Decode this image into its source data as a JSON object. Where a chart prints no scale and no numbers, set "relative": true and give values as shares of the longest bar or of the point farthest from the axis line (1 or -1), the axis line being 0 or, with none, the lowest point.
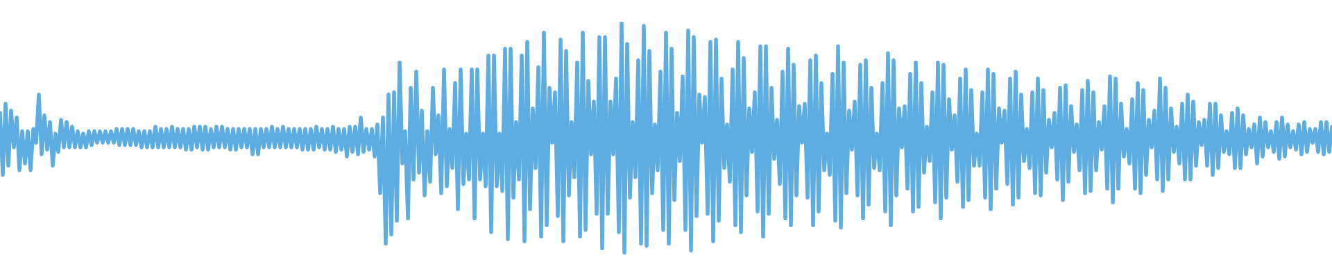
{
  "chart_data": {
    "type": "line",
    "relative": true,
    "color": "#5dade2",
    "tick_labels": false,
    "grid": false,
    "line_style": "solid",
    "categories": [
      null,
      null,
      null,
      null,
      null,
      null,
      null,
      null,
      null,
      null,
      null,
      null,
      null,
      null,
      null,
      null,
      null,
      null,
      null,
      null,
      null,
      null,
      null,
      null,
      null,
      null,
      null,
      null,
      null,
      null,
      null,
      null,
      null,
      null,
      null,
      null,
      null,
      null,
      null,
      null,
      null,
      null,
      null,
      null,
      null,
      null,
      null,
      null,
      null,
      null,
      null,
      null,
      null,
      null,
      null,
      null,
      null,
      null,
      null,
      null,
      null,
      null,
      null,
      null,
      null,
      null,
      null,
      null,
      null,
      null,
      null,
      null,
      null,
      null,
      null,
      null,
      null,
      null,
      null,
      null,
      null,
      null,
      null,
      null,
      null,
      null,
      null,
      null,
      null,
      null,
      null,
      null,
      null,
      null,
      null,
      null,
      null,
      null,
      null,
      null,
      null,
      null,
      null,
      null,
      null,
      null,
      null,
      null,
      null,
      null,
      null,
      null,
      null,
      null,
      null,
      null,
      null,
      null,
      null,
      null,
      null,
      null,
      null,
      null,
      null,
      null,
      null,
      null,
      null,
      null,
      null,
      null,
      null,
      null,
      null,
      null,
      null,
      null,
      null,
      null,
      null,
      null,
      null,
      null,
      null,
      null,
      null,
      null,
      null,
      null,
      null,
      null,
      null,
      null,
      null,
      null,
      null,
      null,
      null,
      null,
      null,
      null,
      null,
      null,
      null,
      null,
      null,
      null,
      null,
      null,
      null,
      null,
      null,
      null,
      null,
      null,
      null,
      null,
      null,
      null,
      null,
      null,
      null,
      null,
      null,
      null,
      null,
      null,
      null,
      null,
      null,
      null,
      null,
      null,
      null,
      null,
      null,
      null,
      null,
      null,
      null,
      null,
      null,
      null,
      null,
      null,
      null,
      null,
      null,
      null,
      null,
      null,
      null,
      null,
      null,
      null,
      null,
      null,
      null,
      null,
      null,
      null,
      null,
      null,
      null,
      null,
      null,
      null,
      null,
      null,
      null,
      null,
      null,
      null,
      null,
      null,
      null,
      null,
      null,
      null,
      null,
      null,
      null,
      null,
      null,
      null,
      null,
      null,
      null,
      null,
      null,
      null,
      null,
      null,
      null,
      null,
      null,
      null,
      null,
      null,
      null,
      null,
      null,
      null,
      null,
      null,
      null,
      null,
      null,
      null,
      null,
      null,
      null,
      null,
      null,
      null,
      null,
      null,
      null,
      null,
      null,
      null,
      null,
      null,
      null,
      null,
      null,
      null,
      null,
      null,
      null,
      null,
      null,
      null,
      null,
      null,
      null,
      null,
      null,
      null,
      null,
      null,
      null,
      null,
      null,
      null,
      null,
      null,
      null,
      null,
      null,
      null,
      null,
      null,
      null,
      null,
      null,
      null,
      null,
      null,
      null,
      null,
      null,
      null,
      null,
      null,
      null,
      null,
      null,
      null,
      null,
      null,
      null,
      null,
      null,
      null,
      null,
      null,
      null,
      null,
      null,
      null,
      null,
      null,
      null,
      null,
      null,
      null,
      null,
      null,
      null,
      null,
      null,
      null,
      null,
      null,
      null,
      null,
      null,
      null,
      null,
      null,
      null,
      null,
      null,
      null,
      null,
      null,
      null,
      null,
      null,
      null,
      null,
      null,
      null,
      null,
      null,
      null,
      null,
      null,
      null,
      null,
      null,
      null,
      null,
      null,
      null,
      null,
      null,
      null,
      null,
      null,
      null,
      null,
      null,
      null,
      null,
      null,
      null,
      null,
      null,
      null,
      null,
      null,
      null,
      null,
      null,
      null,
      null,
      null,
      null,
      null,
      null,
      null,
      null,
      null,
      null,
      null,
      null,
      null,
      null,
      null,
      null,
      null,
      null,
      null,
      null,
      null,
      null,
      null,
      null,
      null,
      null,
      null,
      null,
      null,
      null,
      null,
      null,
      null,
      null,
      null,
      null,
      null,
      null,
      null,
      null,
      null,
      null,
      null,
      null,
      null,
      null,
      null,
      null,
      null,
      null,
      null,
      null,
      null,
      null,
      null,
      null,
      null,
      null,
      null,
      null,
      null,
      null,
      null,
      null,
      null,
      null,
      null,
      null,
      null,
      null,
      null,
      null,
      null,
      null
    ],
    "values": [
      0.61,
      0.34,
      0.65,
      0.38,
      0.62,
      0.46,
      0.59,
      0.36,
      0.53,
      0.39,
      0.53,
      0.36,
      0.54,
      0.48,
      0.69,
      0.43,
      0.6,
      0.45,
      0.57,
      0.38,
      0.52,
      0.44,
      0.58,
      0.46,
      0.57,
      0.46,
      0.55,
      0.46,
      0.53,
      0.46,
      0.52,
      0.46,
      0.53,
      0.47,
      0.53,
      0.48,
      0.53,
      0.48,
      0.53,
      0.48,
      0.53,
      0.48,
      0.54,
      0.47,
      0.54,
      0.47,
      0.54,
      0.47,
      0.54,
      0.47,
      0.53,
      0.46,
      0.53,
      0.46,
      0.53,
      0.46,
      0.55,
      0.46,
      0.54,
      0.46,
      0.54,
      0.46,
      0.55,
      0.46,
      0.54,
      0.46,
      0.54,
      0.45,
      0.54,
      0.45,
      0.55,
      0.46,
      0.55,
      0.45,
      0.55,
      0.45,
      0.54,
      0.46,
      0.55,
      0.46,
      0.55,
      0.46,
      0.54,
      0.45,
      0.54,
      0.45,
      0.54,
      0.46,
      0.54,
      0.46,
      0.54,
      0.43,
      0.54,
      0.43,
      0.54,
      0.46,
      0.54,
      0.46,
      0.55,
      0.46,
      0.54,
      0.46,
      0.55,
      0.46,
      0.54,
      0.46,
      0.54,
      0.46,
      0.54,
      0.45,
      0.54,
      0.45,
      0.54,
      0.45,
      0.55,
      0.46,
      0.54,
      0.45,
      0.54,
      0.45,
      0.55,
      0.44,
      0.54,
      0.45,
      0.54,
      0.42,
      0.55,
      0.44,
      0.55,
      0.43,
      0.59,
      0.44,
      0.54,
      0.45,
      0.54,
      0.42,
      0.56,
      0.26,
      0.59,
      0.04,
      0.69,
      0.08,
      0.7,
      0.14,
      0.83,
      0.39,
      0.53,
      0.15,
      0.72,
      0.32,
      0.79,
      0.35,
      0.62,
      0.25,
      0.53,
      0.31,
      0.72,
      0.43,
      0.6,
      0.26,
      0.8,
      0.29,
      0.54,
      0.37,
      0.74,
      0.19,
      0.8,
      0.3,
      0.52,
      0.32,
      0.8,
      0.15,
      0.8,
      0.32,
      0.52,
      0.29,
      0.86,
      0.09,
      0.86,
      0.29,
      0.52,
      0.27,
      0.89,
      0.06,
      0.89,
      0.24,
      0.57,
      0.32,
      0.86,
      0.05,
      0.92,
      0.19,
      0.63,
      0.37,
      0.81,
      0.07,
      0.96,
      0.12,
      0.72,
      0.48,
      0.7,
      0.16,
      0.93,
      0.05,
      0.88,
      0.25,
      0.57,
      0.33,
      0.83,
      0.07,
      0.96,
      0.1,
      0.75,
      0.43,
      0.66,
      0.17,
      0.94,
      0.02,
      0.94,
      0.17,
      0.66,
      0.43,
      0.76,
      0.09,
      1,
      0,
      0.91,
      0.24,
      0.57,
      0.33,
      0.84,
      0.04,
      0.99,
      0.03,
      0.88,
      0.26,
      0.56,
      0.36,
      0.79,
      0.1,
      0.96,
      0.04,
      0.89,
      0.23,
      0.61,
      0.4,
      0.77,
      0.1,
      0.97,
      0.01,
      0.94,
      0.16,
      0.69,
      0.48,
      0.68,
      0.17,
      0.92,
      0.05,
      0.93,
      0.14,
      0.76,
      0.37,
      0.56,
      0.31,
      0.8,
      0.12,
      0.92,
      0.09,
      0.85,
      0.25,
      0.63,
      0.44,
      0.7,
      0.18,
      0.9,
      0.07,
      0.9,
      0.17,
      0.72,
      0.41,
      0.58,
      0.3,
      0.79,
      0.15,
      0.89,
      0.12,
      0.82,
      0.25,
      0.64,
      0.48,
      0.65,
      0.24,
      0.84,
      0.12,
      0.86,
      0.18,
      0.74,
      0.36,
      0.52,
      0.34,
      0.78,
      0.14,
      0.9,
      0.11,
      0.83,
      0.26,
      0.62,
      0.45,
      0.66,
      0.25,
      0.82,
      0.15,
      0.84,
      0.21,
      0.72,
      0.37,
      0.52,
      0.36,
      0.74,
      0.18,
      0.87,
      0.12,
      0.84,
      0.25,
      0.63,
      0.46,
      0.64,
      0.28,
      0.78,
      0.18,
      0.83,
      0.2,
      0.74,
      0.35,
      0.55,
      0.4,
      0.7,
      0.22,
      0.83,
      0.15,
      0.82,
      0.24,
      0.67,
      0.45,
      0.6,
      0.31,
      0.76,
      0.2,
      0.8,
      0.23,
      0.71,
      0.38,
      0.52,
      0.38,
      0.7,
      0.24,
      0.8,
      0.19,
      0.78,
      0.28,
      0.63,
      0.48,
      0.62,
      0.3,
      0.76,
      0.21,
      0.79,
      0.24,
      0.69,
      0.4,
      0.54,
      0.37,
      0.7,
      0.26,
      0.76,
      0.25,
      0.71,
      0.35,
      0.58,
      0.46,
      0.61,
      0.32,
      0.72,
      0.23,
      0.73,
      0.31,
      0.64,
      0.44,
      0.56,
      0.36,
      0.71,
      0.26,
      0.75,
      0.27,
      0.7,
      0.36,
      0.57,
      0.45,
      0.64,
      0.28,
      0.77,
      0.22,
      0.76,
      0.28,
      0.65,
      0.42,
      0.54,
      0.39,
      0.67,
      0.28,
      0.74,
      0.26,
      0.71,
      0.34,
      0.58,
      0.46,
      0.62,
      0.32,
      0.76,
      0.27,
      0.72,
      0.32,
      0.63,
      0.44,
      0.55,
      0.39,
      0.65,
      0.32,
      0.69,
      0.32,
      0.66,
      0.38,
      0.57,
      0.47,
      0.58,
      0.38,
      0.65,
      0.34,
      0.65,
      0.37,
      0.6,
      0.44,
      0.53,
      0.43,
      0.61,
      0.37,
      0.63,
      0.37,
      0.6,
      0.43,
      0.54,
      0.46,
      0.56,
      0.39,
      0.59,
      0.42,
      0.57,
      0.46,
      0.53,
      0.44,
      0.57,
      0.41,
      0.59,
      0.42,
      0.56,
      0.46,
      0.53,
      0.45,
      0.56,
      0.43,
      0.57,
      0.44,
      0.54,
      0.48,
      0.54,
      0.44,
      0.57,
      0.43,
      0.57,
      0.44,
      0.55
    ]
  }
}
